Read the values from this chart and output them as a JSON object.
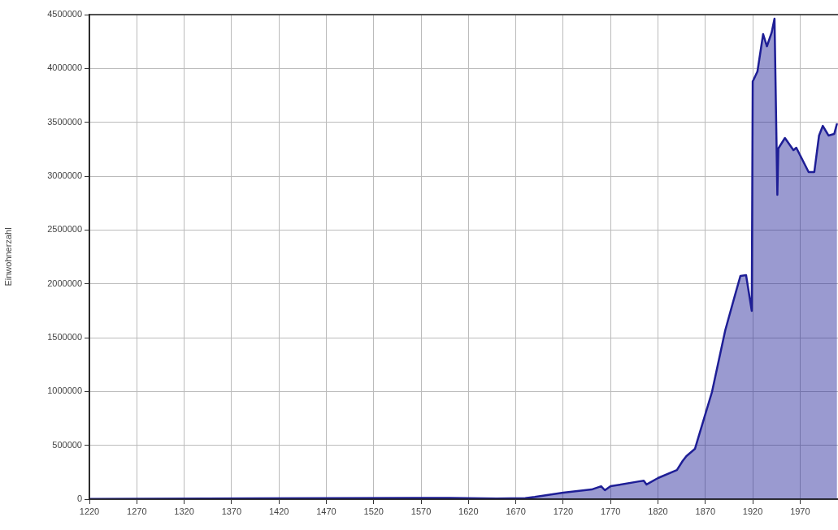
{
  "chart_data": {
    "type": "area",
    "ylabel": "Einwohnerzahl",
    "xlim": [
      1220,
      2010
    ],
    "xticks": [
      1220,
      1270,
      1320,
      1370,
      1420,
      1470,
      1520,
      1570,
      1620,
      1670,
      1720,
      1770,
      1820,
      1870,
      1920,
      1970
    ],
    "ylim": [
      0,
      4500000
    ],
    "yticks": [
      0,
      500000,
      1000000,
      1500000,
      2000000,
      2500000,
      3000000,
      3500000,
      4000000,
      4500000
    ],
    "grid": true,
    "legend": false,
    "marker": "none",
    "line_style": "solid",
    "series": [
      {
        "color": "#1e1e96",
        "x": [
          1220,
          1400,
          1600,
          1650,
          1680,
          1690,
          1720,
          1750,
          1760,
          1764,
          1770,
          1800,
          1805,
          1808,
          1820,
          1840,
          1846,
          1850,
          1859,
          1877,
          1891,
          1901,
          1907,
          1913,
          1919,
          1920,
          1921,
          1925,
          1931,
          1935,
          1940,
          1943,
          1946,
          1947,
          1954,
          1963,
          1966,
          1979,
          1985,
          1990,
          1994,
          2000,
          2006,
          2009
        ],
        "values": [
          1200,
          8000,
          12000,
          6000,
          10000,
          20000,
          60000,
          90000,
          120000,
          83000,
          120000,
          165000,
          172000,
          136000,
          196000,
          270000,
          354000,
          400000,
          467000,
          995000,
          1568000,
          1885000,
          2073000,
          2080000,
          1749000,
          3880000,
          3897000,
          3972000,
          4319000,
          4206000,
          4334000,
          4462000,
          2827000,
          3256000,
          3354000,
          3241000,
          3264000,
          3038000,
          3038000,
          3377000,
          3467000,
          3377000,
          3392000,
          3490000
        ]
      }
    ]
  }
}
